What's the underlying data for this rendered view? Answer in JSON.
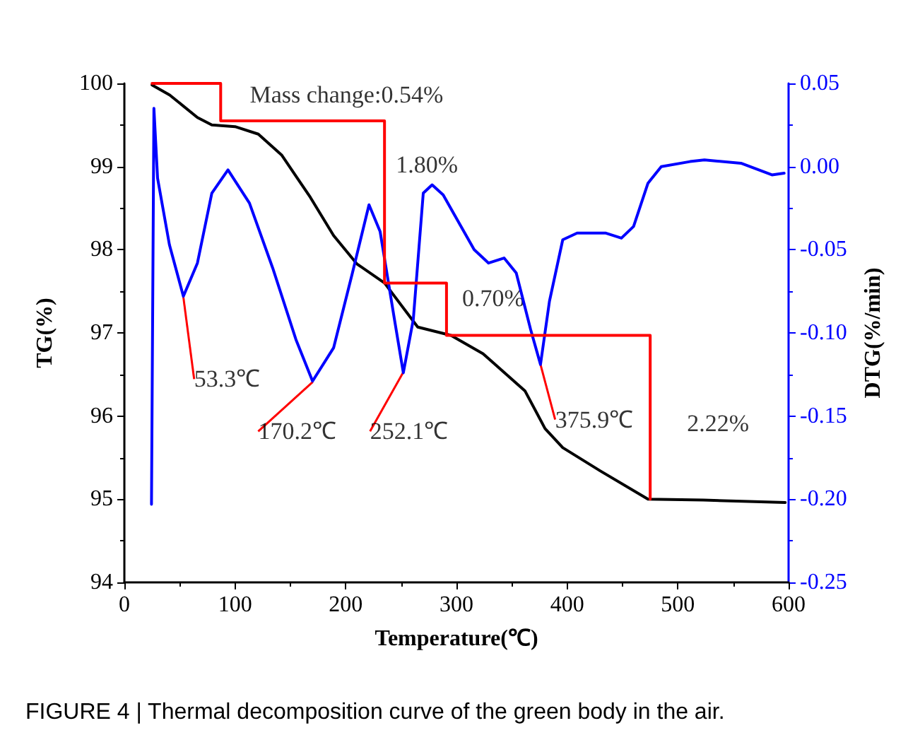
{
  "chart_data": {
    "type": "line",
    "xlabel": "Temperature(℃)",
    "ylabel": "TG(%)",
    "y2label": "DTG(%/min)",
    "xlim": [
      0,
      600
    ],
    "xticks": [
      0,
      100,
      200,
      300,
      400,
      500,
      600
    ],
    "ylim": [
      94,
      100
    ],
    "yticks": [
      94,
      95,
      96,
      97,
      98,
      99,
      100
    ],
    "y2lim": [
      -0.25,
      0.05
    ],
    "y2ticks": [
      {
        "value": -0.25,
        "label": "-0.25"
      },
      {
        "value": -0.2,
        "label": "-0.20"
      },
      {
        "value": -0.15,
        "label": "-0.15"
      },
      {
        "value": -0.1,
        "label": "-0.10"
      },
      {
        "value": -0.05,
        "label": "-0.05"
      },
      {
        "value": 0,
        "label": "0.00"
      },
      {
        "value": 0.05,
        "label": "0.05"
      }
    ],
    "grid": false,
    "marker": "none",
    "line_style": "solid",
    "series": [
      {
        "color": "#000000",
        "x": [
          25,
          41,
          66,
          79,
          100,
          121,
          142,
          168,
          189,
          210,
          235,
          265,
          295,
          324,
          362,
          380,
          396,
          430,
          473,
          523,
          597
        ],
        "values": [
          99.98,
          99.86,
          99.59,
          99.5,
          99.48,
          99.39,
          99.14,
          98.63,
          98.17,
          97.83,
          97.6,
          97.07,
          96.97,
          96.75,
          96.3,
          95.85,
          95.62,
          95.34,
          95.0,
          94.99,
          94.96
        ]
      },
      {
        "color": "#0000ff",
        "axis": "y2",
        "x": [
          24.5,
          26.7,
          30,
          40.7,
          53.3,
          66,
          79,
          93.6,
          113,
          134,
          155,
          170,
          189,
          206,
          221,
          231,
          244,
          252,
          261,
          270,
          278,
          288,
          299,
          316,
          329,
          343,
          354,
          367,
          375.9,
          384,
          396,
          409,
          435,
          449,
          460,
          473,
          485,
          511,
          524,
          557,
          585,
          596
        ],
        "values": [
          -0.203,
          0.035,
          -0.007,
          -0.047,
          -0.078,
          -0.058,
          -0.016,
          -0.002,
          -0.022,
          -0.061,
          -0.104,
          -0.129,
          -0.109,
          -0.064,
          -0.023,
          -0.039,
          -0.092,
          -0.124,
          -0.092,
          -0.016,
          -0.011,
          -0.017,
          -0.03,
          -0.05,
          -0.058,
          -0.055,
          -0.064,
          -0.098,
          -0.119,
          -0.081,
          -0.044,
          -0.04,
          -0.04,
          -0.043,
          -0.036,
          -0.01,
          0.0,
          0.003,
          0.004,
          0.002,
          -0.005,
          -0.004
        ]
      },
      {
        "color": "#ff0000",
        "x": [
          25,
          87,
          87,
          235,
          235,
          291,
          291,
          475,
          475
        ],
        "values": [
          100.0,
          100.0,
          99.55,
          99.55,
          97.6,
          97.6,
          96.97,
          96.97,
          95.0
        ]
      }
    ],
    "annotations": [
      {
        "text": "Mass change:0.54%",
        "x": 87,
        "y": 99.8
      },
      {
        "text": "1.80%",
        "x": 235,
        "y": 98.6
      },
      {
        "text": "0.70%",
        "x": 291,
        "y": 97.3
      },
      {
        "text": "2.22%",
        "x": 475,
        "y": 96.0
      },
      {
        "text": "53.3℃",
        "x": 53.3,
        "y": 97.43
      },
      {
        "text": "170.2℃",
        "x": 170.2,
        "y": 96.41
      },
      {
        "text": "252.1℃",
        "x": 252.1,
        "y": 96.53
      },
      {
        "text": "375.9℃",
        "x": 375.9,
        "y": 96.62
      },
      "FIGURE 4 | Thermal decomposition curve of the green body in the air."
    ]
  }
}
